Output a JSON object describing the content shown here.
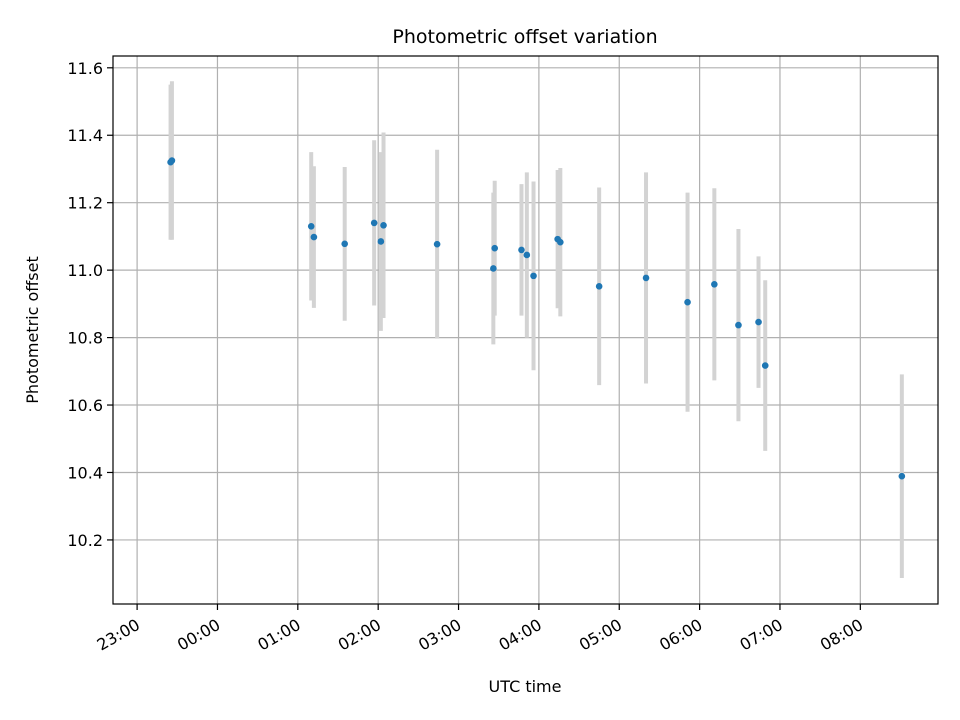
{
  "chart_data": {
    "type": "scatter",
    "title": "Photometric offset variation",
    "xlabel": "UTC time",
    "ylabel": "Photometric offset",
    "grid": true,
    "x_unit": "UTC time (hh:mm)",
    "xlim": [
      "22:42",
      "08:58"
    ],
    "ylim": [
      10.01,
      11.635
    ],
    "x_tick_labels": [
      "23:00",
      "00:00",
      "01:00",
      "02:00",
      "03:00",
      "04:00",
      "05:00",
      "06:00",
      "07:00",
      "08:00"
    ],
    "y_tick_labels": [
      "10.2",
      "10.4",
      "10.6",
      "10.8",
      "11.0",
      "11.2",
      "11.4",
      "11.6"
    ],
    "marker_color": "#1f77b4",
    "errorbar_color": "#d3d3d3",
    "points": [
      {
        "x": "23:25",
        "y": 11.32,
        "err": 0.23
      },
      {
        "x": "23:26",
        "y": 11.325,
        "err": 0.235
      },
      {
        "x": "01:10",
        "y": 11.13,
        "err": 0.22
      },
      {
        "x": "01:12",
        "y": 11.098,
        "err": 0.21
      },
      {
        "x": "01:35",
        "y": 11.078,
        "err": 0.228
      },
      {
        "x": "01:57",
        "y": 11.14,
        "err": 0.245
      },
      {
        "x": "02:02",
        "y": 11.085,
        "err": 0.265
      },
      {
        "x": "02:04",
        "y": 11.133,
        "err": 0.275
      },
      {
        "x": "02:44",
        "y": 11.077,
        "err": 0.28
      },
      {
        "x": "03:26",
        "y": 11.005,
        "err": 0.225
      },
      {
        "x": "03:27",
        "y": 11.065,
        "err": 0.2
      },
      {
        "x": "03:47",
        "y": 11.06,
        "err": 0.195
      },
      {
        "x": "03:51",
        "y": 11.045,
        "err": 0.245
      },
      {
        "x": "03:56",
        "y": 10.983,
        "err": 0.28
      },
      {
        "x": "04:14",
        "y": 11.092,
        "err": 0.205
      },
      {
        "x": "04:16",
        "y": 11.083,
        "err": 0.22
      },
      {
        "x": "04:45",
        "y": 10.952,
        "err": 0.293
      },
      {
        "x": "05:20",
        "y": 10.977,
        "err": 0.313
      },
      {
        "x": "05:51",
        "y": 10.905,
        "err": 0.325
      },
      {
        "x": "06:11",
        "y": 10.958,
        "err": 0.285
      },
      {
        "x": "06:29",
        "y": 10.837,
        "err": 0.285
      },
      {
        "x": "06:44",
        "y": 10.846,
        "err": 0.195
      },
      {
        "x": "06:49",
        "y": 10.717,
        "err": 0.253
      },
      {
        "x": "08:31",
        "y": 10.389,
        "err": 0.302
      }
    ]
  }
}
